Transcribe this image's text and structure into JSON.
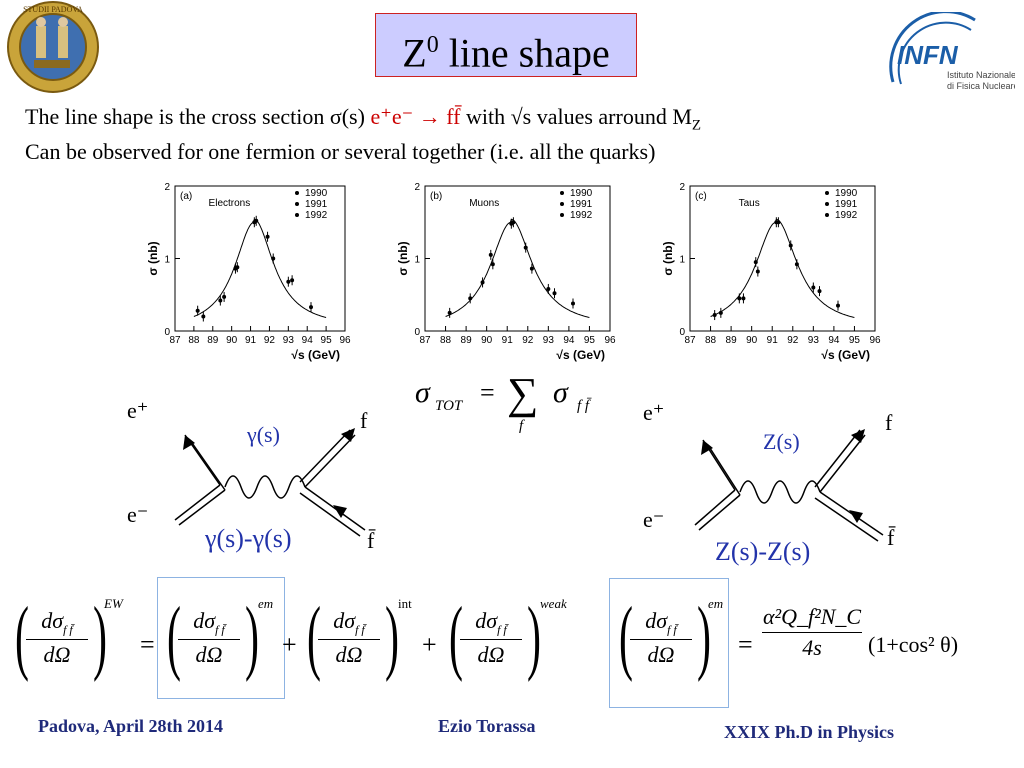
{
  "slide": {
    "title_main": "Z",
    "title_sup": "0",
    "title_rest": " line shape"
  },
  "logos": {
    "left_seal_text": "STUDII PADOVA",
    "infn_text": "INFN",
    "infn_sub1": "Istituto Nazionale",
    "infn_sub2": "di Fisica Nucleare"
  },
  "intro": {
    "line1_a": "The line shape is the cross section  σ(s)  ",
    "line1_react": "e⁺e⁻ → ff̄",
    "line1_b": "   with  √s values  arround M",
    "line1_sub": "Z",
    "line2": "Can be observed for one fermion or several together (i.e. all the quarks)"
  },
  "chart_data": [
    {
      "type": "scatter",
      "panel": "(a)",
      "title": "Electrons",
      "ylabel": "σ (nb)",
      "xlabel": "√s (GeV)",
      "xlim": [
        87,
        96
      ],
      "ylim": [
        0,
        2
      ],
      "xticks": [
        "87",
        "88",
        "89",
        "90",
        "91",
        "92",
        "93",
        "94",
        "95",
        "96"
      ],
      "yticks": [
        "0",
        "1",
        "2"
      ],
      "legend": [
        "1990",
        "1991",
        "1992"
      ],
      "x": [
        88.2,
        88.5,
        89.4,
        89.6,
        90.2,
        90.3,
        91.2,
        91.3,
        91.9,
        92.2,
        93.0,
        93.2,
        94.2
      ],
      "y": [
        0.28,
        0.2,
        0.42,
        0.47,
        0.86,
        0.88,
        1.5,
        1.52,
        1.3,
        1.0,
        0.68,
        0.7,
        0.33
      ]
    },
    {
      "type": "scatter",
      "panel": "(b)",
      "title": "Muons",
      "ylabel": "σ (nb)",
      "xlabel": "√s (GeV)",
      "xlim": [
        87,
        96
      ],
      "ylim": [
        0,
        2
      ],
      "xticks": [
        "87",
        "88",
        "89",
        "90",
        "91",
        "92",
        "93",
        "94",
        "95",
        "96"
      ],
      "yticks": [
        "0",
        "1",
        "2"
      ],
      "legend": [
        "1990",
        "1991",
        "1992"
      ],
      "x": [
        88.2,
        89.2,
        89.8,
        90.2,
        90.3,
        91.2,
        91.3,
        91.9,
        92.2,
        93.0,
        93.3,
        94.2
      ],
      "y": [
        0.25,
        0.45,
        0.67,
        1.05,
        0.92,
        1.48,
        1.5,
        1.15,
        0.86,
        0.58,
        0.52,
        0.38
      ]
    },
    {
      "type": "scatter",
      "panel": "(c)",
      "title": "Taus",
      "ylabel": "σ (nb)",
      "xlabel": "√s (GeV)",
      "xlim": [
        87,
        96
      ],
      "ylim": [
        0,
        2
      ],
      "xticks": [
        "87",
        "88",
        "89",
        "90",
        "91",
        "92",
        "93",
        "94",
        "95",
        "96"
      ],
      "yticks": [
        "0",
        "1",
        "2"
      ],
      "legend": [
        "1990",
        "1991",
        "1992"
      ],
      "x": [
        88.2,
        88.5,
        89.4,
        89.6,
        90.2,
        90.3,
        91.2,
        91.3,
        91.9,
        92.2,
        93.0,
        93.3,
        94.2
      ],
      "y": [
        0.22,
        0.25,
        0.45,
        0.45,
        0.95,
        0.82,
        1.5,
        1.5,
        1.18,
        0.92,
        0.6,
        0.55,
        0.35
      ]
    }
  ],
  "sum_formula": {
    "lhs": "σ",
    "lhs_sub": "TOT",
    "eq": "=",
    "sum": "∑",
    "sum_sub": "f",
    "rhs": "σ",
    "rhs_sub": "f f̄"
  },
  "diagram_left": {
    "eplus": "e⁺",
    "eminus": "e⁻",
    "f": "f",
    "fbar": "f̄",
    "propagator": "γ(s)",
    "caption": "γ(s)-γ(s)"
  },
  "diagram_right": {
    "eplus": "e⁺",
    "eminus": "e⁻",
    "f": "f",
    "fbar": "f̄",
    "propagator": "Z(s)",
    "caption": "Z(s)-Z(s)"
  },
  "equation_main": {
    "num": "dσ",
    "num_sub": "f f̄",
    "den": "dΩ",
    "sup_ew": "EW",
    "sup_em": "em",
    "sup_int": "int",
    "sup_weak": "weak",
    "eq": "=",
    "plus": "+"
  },
  "equation_em": {
    "num": "dσ",
    "num_sub": "f f̄",
    "den": "dΩ",
    "sup": "em",
    "eq": "=",
    "rhs_num": "α²Q_f²N_C",
    "rhs_den": "4s",
    "rhs_factor": "(1+cos² θ)"
  },
  "footer": {
    "left": "Padova, April 28th 2014",
    "center": "Ezio Torassa",
    "right": "XXIX  Ph.D in Physics"
  }
}
